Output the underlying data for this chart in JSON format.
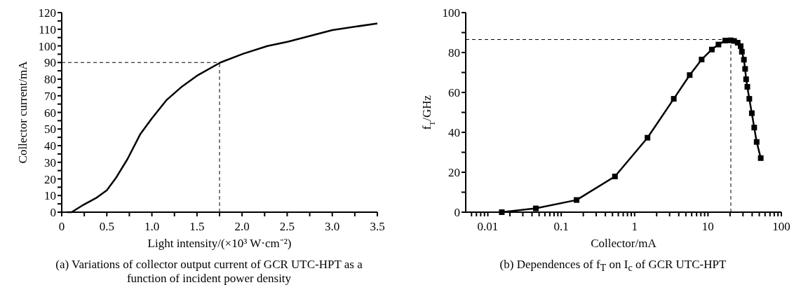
{
  "chart_data": [
    {
      "type": "line",
      "xlabel": "Light intensity/(×10³ W·cm⁻²)",
      "ylabel": "Collector current/mA",
      "annotations": [
        "(a) Variations of collector output current of GCR UTC-HPT as a function of incident power density"
      ],
      "series": [
        {
          "color": "#000000",
          "x": [
            0.06,
            0.11,
            0.24,
            0.39,
            0.5,
            0.6,
            0.73,
            0.87,
            1.0,
            1.16,
            1.33,
            1.51,
            1.76,
            2.01,
            2.28,
            2.51,
            3.0,
            3.5
          ],
          "values": [
            0,
            0,
            4.4,
            8.8,
            13.2,
            20.5,
            32,
            46.8,
            56.4,
            67.3,
            75.4,
            82.4,
            90,
            95.2,
            99.9,
            102.5,
            109.5,
            113.5
          ]
        }
      ],
      "xlim": [
        0,
        3.5
      ],
      "xticks": [
        0,
        {
          "value": 0.25,
          "label": null
        },
        0.5,
        {
          "value": 0.75,
          "label": null
        },
        {
          "value": 1,
          "label": "1.0"
        },
        {
          "value": 1.25,
          "label": null
        },
        1.5,
        {
          "value": 1.75,
          "label": null
        },
        {
          "value": 2,
          "label": "2.0"
        },
        {
          "value": 2.25,
          "label": null
        },
        2.5,
        {
          "value": 2.75,
          "label": null
        },
        {
          "value": 3,
          "label": "3.0"
        },
        {
          "value": 3.25,
          "label": null
        },
        3.5
      ],
      "ylim": [
        0,
        120
      ],
      "yticks": [
        0,
        {
          "value": 5,
          "label": null
        },
        10,
        {
          "value": 15,
          "label": null
        },
        20,
        {
          "value": 25,
          "label": null
        },
        30,
        {
          "value": 35,
          "label": null
        },
        40,
        {
          "value": 45,
          "label": null
        },
        50,
        {
          "value": 55,
          "label": null
        },
        60,
        {
          "value": 65,
          "label": null
        },
        70,
        {
          "value": 75,
          "label": null
        },
        80,
        {
          "value": 85,
          "label": null
        },
        90,
        {
          "value": 95,
          "label": null
        },
        100,
        {
          "value": 105,
          "label": null
        },
        110,
        {
          "value": 115,
          "label": null
        },
        120
      ],
      "ref_lines": [
        {
          "axis": "x",
          "value": 1.75,
          "line_style": "dashed"
        },
        {
          "axis": "y",
          "value": 90,
          "line_style": "dashed"
        }
      ],
      "marker": "none",
      "line_style": "solid"
    },
    {
      "type": "line",
      "xlabel": "Collector/mA",
      "ylabel": "f$_{T}$/GHz",
      "annotations": [
        "(b) Dependences of f$_{T}$ on I$_{c}$ of GCR UTC-HPT"
      ],
      "series": [
        {
          "color": "#000000",
          "x": [
            0.0155,
            0.0452,
            0.162,
            0.54,
            1.5,
            3.42,
            5.64,
            8.2,
            11.3,
            13.9,
            17.2,
            20.4,
            22.7,
            25.4,
            27.9,
            29,
            30.9,
            32.1,
            33.1,
            34.4,
            36.6,
            39.6,
            42.7,
            46.1,
            52.4
          ],
          "values": [
            0,
            1.9,
            6.1,
            17.9,
            37.3,
            56.8,
            68.7,
            76.5,
            81.5,
            84,
            86,
            86.1,
            85.8,
            84.9,
            83.2,
            80.4,
            76.4,
            71.8,
            66.6,
            62.8,
            56.8,
            49.6,
            42.4,
            35.2,
            27.1
          ]
        }
      ],
      "log": "x",
      "xlim": [
        0.005,
        100
      ],
      "xticks": [
        {
          "value": 0.006,
          "label": null
        },
        {
          "value": 0.007,
          "label": null
        },
        {
          "value": 0.008,
          "label": null
        },
        {
          "value": 0.009,
          "label": null
        },
        0.01,
        {
          "value": 0.02,
          "label": null
        },
        {
          "value": 0.03,
          "label": null
        },
        {
          "value": 0.04,
          "label": null
        },
        {
          "value": 0.05,
          "label": null
        },
        {
          "value": 0.06,
          "label": null
        },
        {
          "value": 0.07,
          "label": null
        },
        {
          "value": 0.08,
          "label": null
        },
        {
          "value": 0.09,
          "label": null
        },
        0.1,
        {
          "value": 0.2,
          "label": null
        },
        {
          "value": 0.3,
          "label": null
        },
        {
          "value": 0.4,
          "label": null
        },
        {
          "value": 0.5,
          "label": null
        },
        {
          "value": 0.6,
          "label": null
        },
        {
          "value": 0.7,
          "label": null
        },
        {
          "value": 0.8,
          "label": null
        },
        {
          "value": 0.9,
          "label": null
        },
        1,
        {
          "value": 2,
          "label": null
        },
        {
          "value": 3,
          "label": null
        },
        {
          "value": 4,
          "label": null
        },
        {
          "value": 5,
          "label": null
        },
        {
          "value": 6,
          "label": null
        },
        {
          "value": 7,
          "label": null
        },
        {
          "value": 8,
          "label": null
        },
        {
          "value": 9,
          "label": null
        },
        10,
        {
          "value": 20,
          "label": null
        },
        {
          "value": 30,
          "label": null
        },
        {
          "value": 40,
          "label": null
        },
        {
          "value": 50,
          "label": null
        },
        {
          "value": 60,
          "label": null
        },
        {
          "value": 70,
          "label": null
        },
        {
          "value": 80,
          "label": null
        },
        {
          "value": 90,
          "label": null
        },
        100
      ],
      "ylim": [
        0,
        100
      ],
      "yticks": [
        0,
        {
          "value": 10,
          "label": null
        },
        20,
        {
          "value": 30,
          "label": null
        },
        40,
        {
          "value": 50,
          "label": null
        },
        60,
        {
          "value": 70,
          "label": null
        },
        80,
        {
          "value": 90,
          "label": null
        },
        100
      ],
      "ref_lines": [
        {
          "axis": "x",
          "value": 20.5,
          "line_style": "dashed"
        },
        {
          "axis": "y",
          "value": 86.5,
          "line_style": "dashed"
        }
      ],
      "marker": "square",
      "line_style": "solid"
    }
  ]
}
